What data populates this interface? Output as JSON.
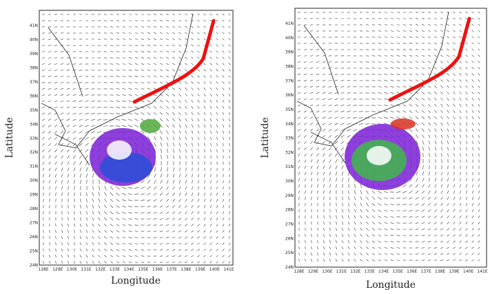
{
  "panels": [
    {
      "y_label": "Latitude",
      "x_label": "Longitude",
      "yticks": [
        "41N",
        "40N",
        "39N",
        "38N",
        "37N",
        "36N",
        "35N",
        "34N",
        "33N",
        "32N",
        "31N",
        "30N",
        "29N",
        "28N",
        "27N",
        "26N",
        "25N",
        "24N"
      ],
      "xticks": [
        "128E",
        "129E",
        "130E",
        "131E",
        "132E",
        "133E",
        "134E",
        "135E",
        "136E",
        "137E",
        "138E",
        "139E",
        "140E",
        "141E"
      ]
    },
    {
      "y_label": "Latitude",
      "x_label": "Longitude",
      "yticks": [
        "41N",
        "40N",
        "39N",
        "38N",
        "37N",
        "36N",
        "35N",
        "34N",
        "33N",
        "32N",
        "31N",
        "30N",
        "29N",
        "28N",
        "27N",
        "26N",
        "25N",
        "24N"
      ],
      "xticks": [
        "128E",
        "129E",
        "130E",
        "131E",
        "132E",
        "133E",
        "134E",
        "135E",
        "136E",
        "137E",
        "138E",
        "139E",
        "140E",
        "141E"
      ]
    }
  ]
}
